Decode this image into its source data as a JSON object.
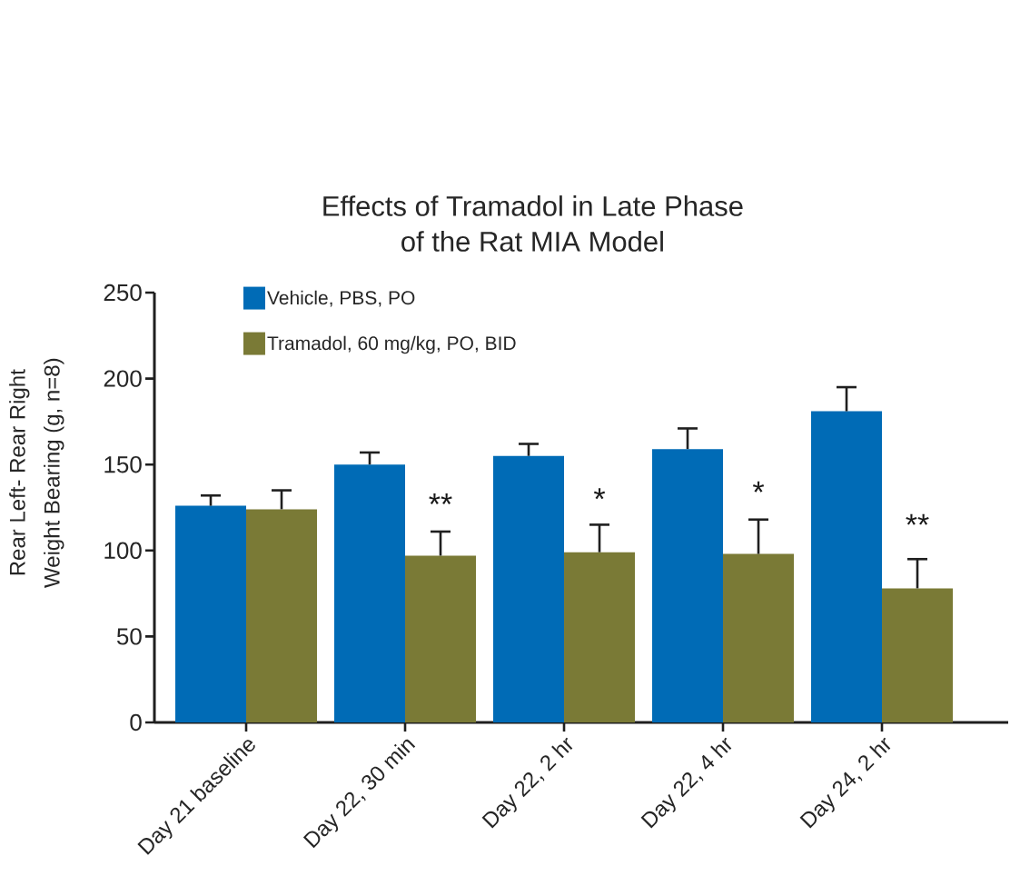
{
  "chart_data": {
    "type": "bar",
    "title": "Effects of Tramadol in Late Phase of the Rat MIA Model",
    "ylabel": "Rear Left- Rear Right Weight Bearing (g, n=8)",
    "categories": [
      "Day 21 baseline",
      "Day 22, 30 min",
      "Day 22, 2 hr",
      "Day 22, 4 hr",
      "Day 24, 2 hr"
    ],
    "series": [
      {
        "name": "Vehicle, PBS, PO",
        "color": "#006bb6",
        "values": [
          126,
          150,
          155,
          159,
          181
        ],
        "errors": [
          6,
          7,
          7,
          12,
          14
        ]
      },
      {
        "name": "Tramadol, 60 mg/kg, PO, BID",
        "color": "#7a7a36",
        "values": [
          124,
          97,
          99,
          98,
          78
        ],
        "errors": [
          11,
          14,
          16,
          20,
          17
        ]
      }
    ],
    "ylim": [
      0,
      250
    ],
    "yticks": [
      0,
      50,
      100,
      150,
      200,
      250
    ],
    "legend": "top left",
    "annotations": [
      {
        "text": "**",
        "x": "Day 22, 30 min",
        "y": 127
      },
      {
        "text": "*",
        "x": "Day 22, 2 hr",
        "y": 130
      },
      {
        "text": "*",
        "x": "Day 22, 4 hr",
        "y": 134
      },
      {
        "text": "**",
        "x": "Day 24, 2 hr",
        "y": 115
      }
    ]
  }
}
